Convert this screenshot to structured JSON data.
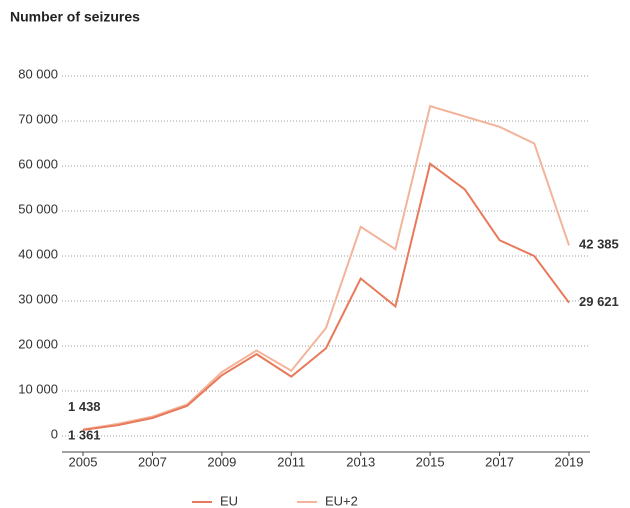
{
  "chart_data": {
    "type": "line",
    "title": "Number of seizures",
    "x": [
      2005,
      2006,
      2007,
      2008,
      2009,
      2010,
      2011,
      2012,
      2013,
      2014,
      2015,
      2016,
      2017,
      2018,
      2019
    ],
    "xlim": [
      2005,
      2019
    ],
    "xticks": [
      2005,
      2007,
      2009,
      2011,
      2013,
      2015,
      2017,
      2019
    ],
    "ylim": [
      0,
      80000
    ],
    "yticks": [
      0,
      {
        "value": 10000,
        "label": "10 000"
      },
      {
        "value": 20000,
        "label": "20 000"
      },
      {
        "value": 30000,
        "label": "30 000"
      },
      {
        "value": 40000,
        "label": "40 000"
      },
      {
        "value": 50000,
        "label": "50 000"
      },
      {
        "value": 60000,
        "label": "60 000"
      },
      {
        "value": 70000,
        "label": "70 000"
      },
      {
        "value": 80000,
        "label": "80 000"
      }
    ],
    "grid": true,
    "legend": "bottom",
    "series": [
      {
        "name": "EU",
        "color": "#e8795a",
        "values": [
          1361,
          2400,
          4000,
          6700,
          13500,
          18200,
          13200,
          19500,
          35000,
          28800,
          60500,
          54800,
          43500,
          40000,
          29621
        ],
        "value_labels": [
          "1 361",
          null,
          null,
          null,
          null,
          null,
          null,
          null,
          null,
          null,
          null,
          null,
          null,
          null,
          "29 621"
        ]
      },
      {
        "name": "EU+2",
        "color": "#f2b49b",
        "values": [
          1438,
          2700,
          4300,
          7000,
          14200,
          19000,
          14500,
          24000,
          46500,
          41500,
          73300,
          71000,
          68700,
          65000,
          42385
        ],
        "value_labels": [
          "1 438",
          null,
          null,
          null,
          null,
          null,
          null,
          null,
          null,
          null,
          null,
          null,
          null,
          null,
          "42 385"
        ]
      }
    ]
  }
}
